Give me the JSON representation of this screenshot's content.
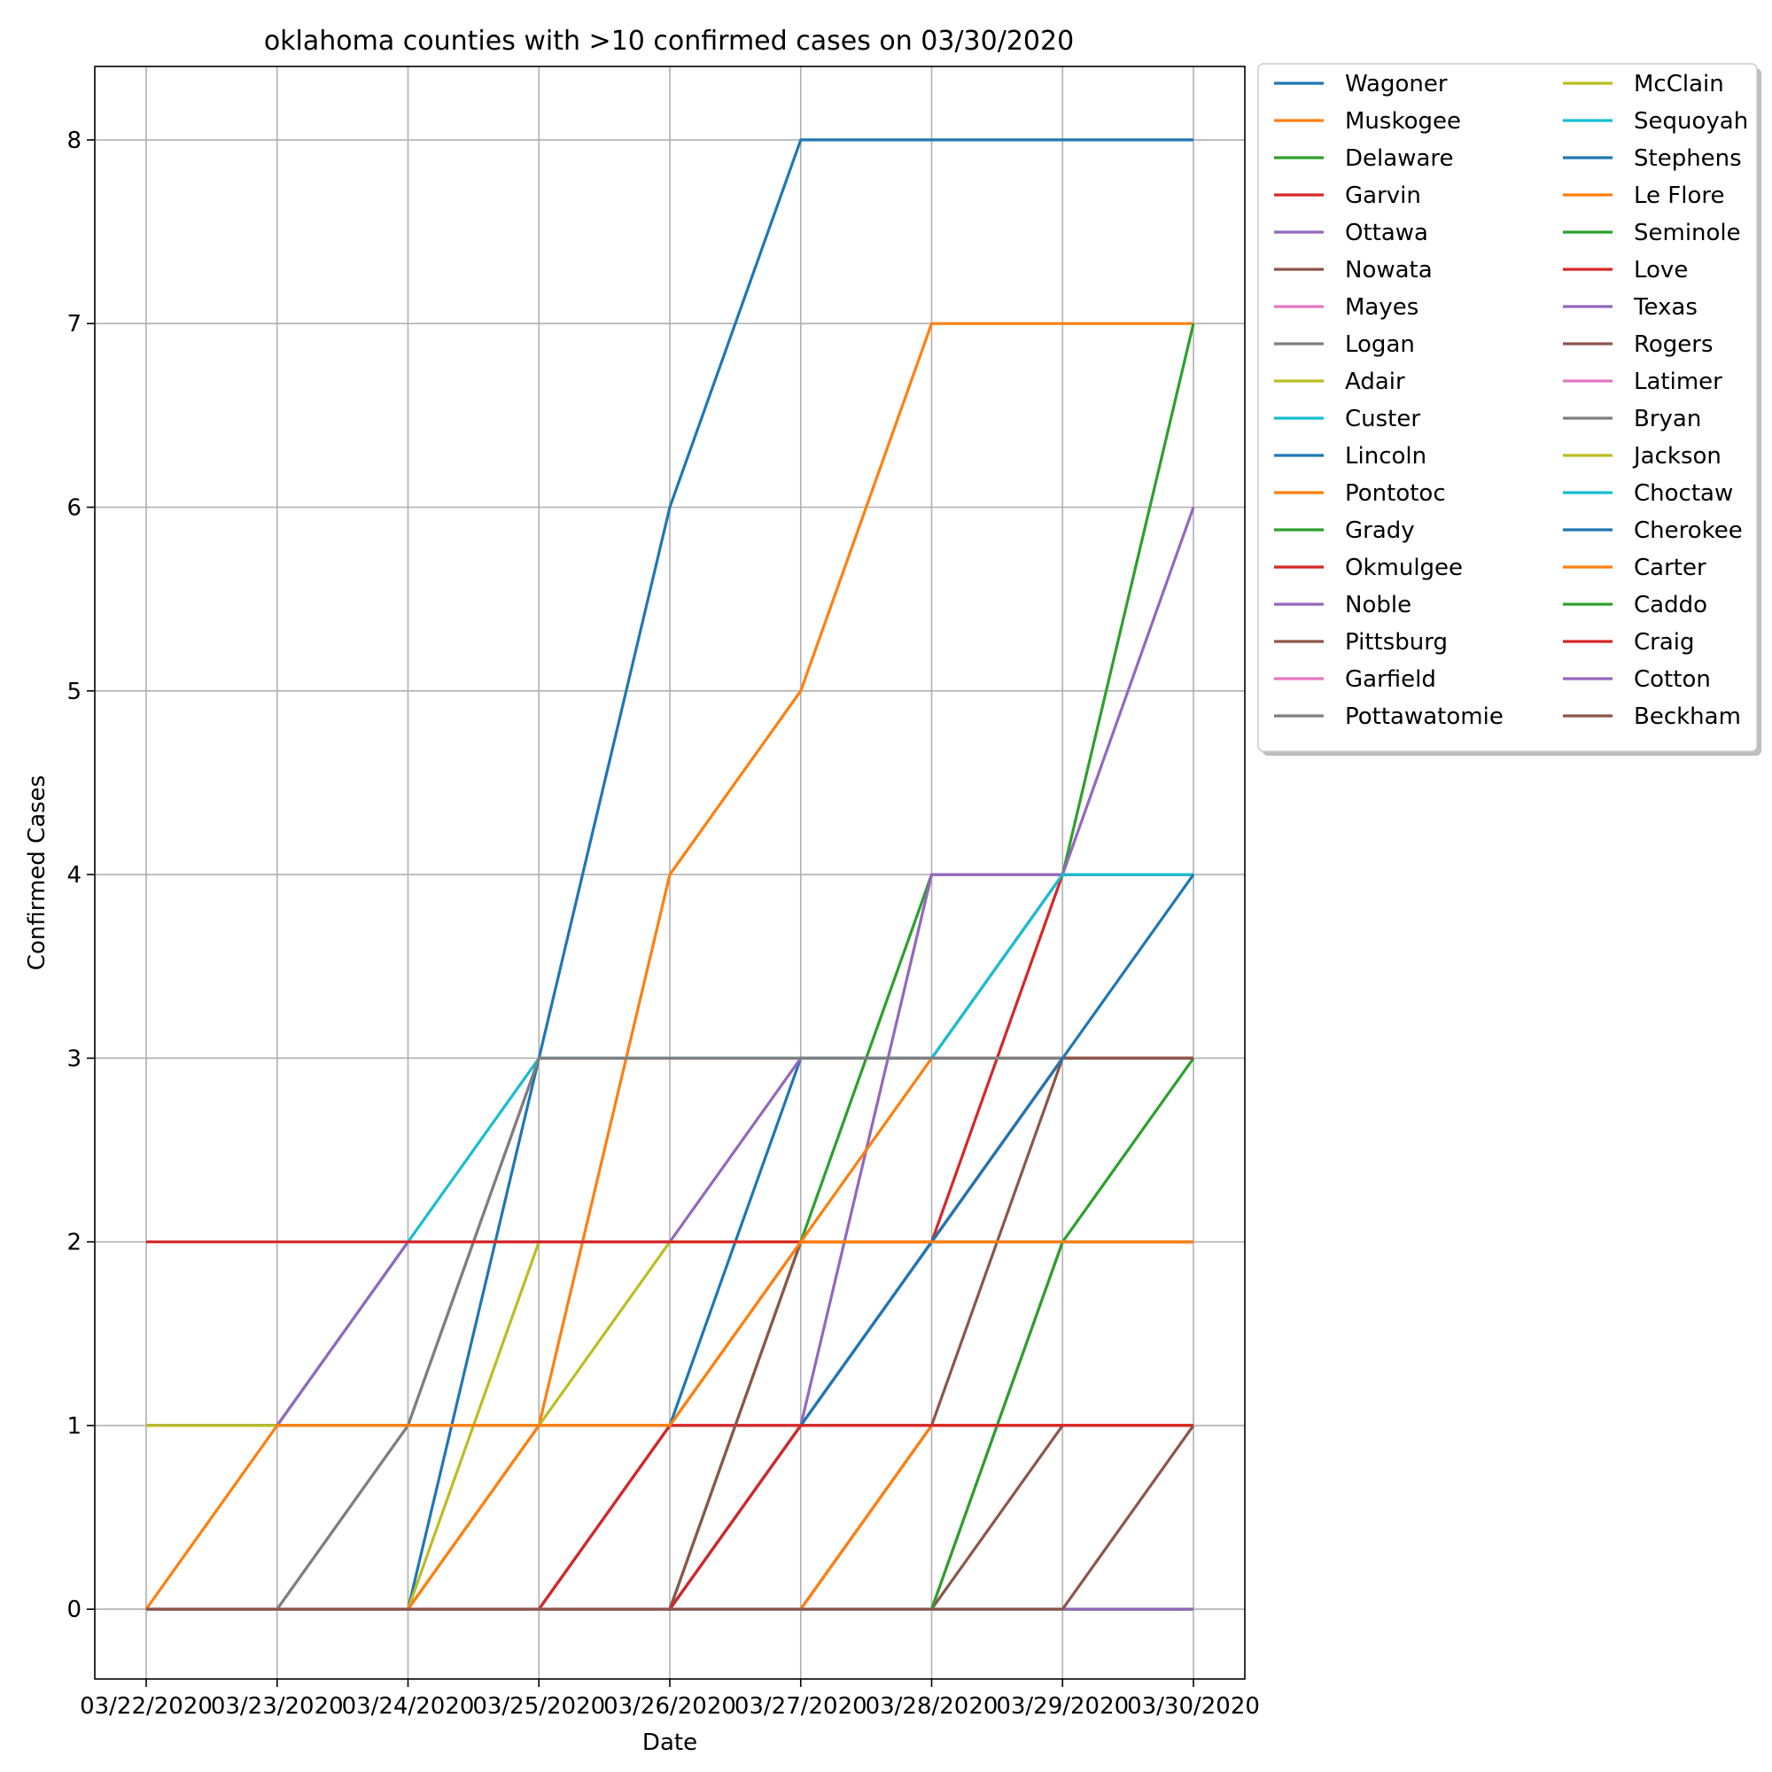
{
  "chart_data": {
    "type": "line",
    "title": "oklahoma counties with >10 confirmed cases on 03/30/2020",
    "xlabel": "Date",
    "ylabel": "Confirmed Cases",
    "x": [
      "03/22/2020",
      "03/23/2020",
      "03/24/2020",
      "03/25/2020",
      "03/26/2020",
      "03/27/2020",
      "03/28/2020",
      "03/29/2020",
      "03/30/2020"
    ],
    "yticks": [
      "0",
      "1",
      "2",
      "3",
      "4",
      "5",
      "6",
      "7",
      "8"
    ],
    "ylim": [
      -0.38,
      8.4
    ],
    "grid": true,
    "legend_position": "outside-top-right",
    "legend_columns": 2,
    "series": [
      {
        "name": "Wagoner",
        "color": "#1f77b4",
        "values": [
          0,
          0,
          0,
          3,
          6,
          8,
          8,
          8,
          8
        ]
      },
      {
        "name": "Muskogee",
        "color": "#ff7f0e",
        "values": [
          0,
          0,
          0,
          1,
          4,
          5,
          7,
          7,
          7
        ]
      },
      {
        "name": "Delaware",
        "color": "#2ca02c",
        "values": [
          0,
          0,
          0,
          0,
          0,
          2,
          4,
          4,
          7
        ]
      },
      {
        "name": "Garvin",
        "color": "#d62728",
        "values": [
          0,
          0,
          0,
          0,
          1,
          1,
          2,
          4,
          4
        ]
      },
      {
        "name": "Ottawa",
        "color": "#9467bd",
        "values": [
          0,
          0,
          0,
          0,
          0,
          1,
          4,
          4,
          6
        ]
      },
      {
        "name": "Nowata",
        "color": "#8c564b",
        "values": [
          0,
          0,
          0,
          0,
          0,
          0,
          0,
          1,
          1
        ]
      },
      {
        "name": "Mayes",
        "color": "#e377c2",
        "values": [
          0,
          0,
          1,
          1,
          1,
          1,
          1,
          1,
          1
        ]
      },
      {
        "name": "Logan",
        "color": "#7f7f7f",
        "values": [
          1,
          1,
          1,
          3,
          3,
          3,
          3,
          4,
          4
        ]
      },
      {
        "name": "Adair",
        "color": "#bcbd22",
        "values": [
          0,
          0,
          0,
          2,
          2,
          2,
          2,
          3,
          3
        ]
      },
      {
        "name": "Custer",
        "color": "#17becf",
        "values": [
          1,
          1,
          2,
          3,
          3,
          3,
          3,
          4,
          4
        ]
      },
      {
        "name": "Lincoln",
        "color": "#1f77b4",
        "values": [
          0,
          0,
          0,
          0,
          1,
          3,
          3,
          3,
          3
        ]
      },
      {
        "name": "Pontotoc",
        "color": "#ff7f0e",
        "values": [
          0,
          0,
          0,
          1,
          1,
          2,
          3,
          3,
          3
        ]
      },
      {
        "name": "Grady",
        "color": "#2ca02c",
        "values": [
          0,
          0,
          0,
          0,
          0,
          1,
          1,
          1,
          1
        ]
      },
      {
        "name": "Okmulgee",
        "color": "#d62728",
        "values": [
          0,
          0,
          0,
          0,
          1,
          1,
          1,
          1,
          1
        ]
      },
      {
        "name": "Noble",
        "color": "#9467bd",
        "values": [
          1,
          1,
          2,
          2,
          2,
          3,
          3,
          3,
          3
        ]
      },
      {
        "name": "Pittsburg",
        "color": "#8c564b",
        "values": [
          0,
          0,
          0,
          0,
          0,
          0,
          1,
          3,
          3
        ]
      },
      {
        "name": "Garfield",
        "color": "#e377c2",
        "values": [
          0,
          0,
          0,
          0,
          0,
          0,
          0,
          2,
          2
        ]
      },
      {
        "name": "Pottawatomie",
        "color": "#7f7f7f",
        "values": [
          0,
          0,
          1,
          3,
          3,
          3,
          3,
          3,
          3
        ]
      },
      {
        "name": "McClain",
        "color": "#bcbd22",
        "values": [
          1,
          1,
          1,
          1,
          2,
          2,
          2,
          2,
          2
        ]
      },
      {
        "name": "Sequoyah",
        "color": "#17becf",
        "values": [
          0,
          0,
          0,
          0,
          0,
          0,
          0,
          0,
          0
        ]
      },
      {
        "name": "Stephens",
        "color": "#1f77b4",
        "values": [
          0,
          0,
          0,
          0,
          0,
          1,
          2,
          2,
          2
        ]
      },
      {
        "name": "Le Flore",
        "color": "#ff7f0e",
        "values": [
          0,
          0,
          0,
          0,
          0,
          0,
          1,
          1,
          1
        ]
      },
      {
        "name": "Seminole",
        "color": "#2ca02c",
        "values": [
          0,
          0,
          0,
          0,
          0,
          0,
          0,
          2,
          3
        ]
      },
      {
        "name": "Love",
        "color": "#d62728",
        "values": [
          2,
          2,
          2,
          2,
          2,
          2,
          2,
          3,
          3
        ]
      },
      {
        "name": "Texas",
        "color": "#9467bd",
        "values": [
          0,
          0,
          0,
          0,
          0,
          0,
          0,
          0,
          0
        ]
      },
      {
        "name": "Rogers",
        "color": "#8c564b",
        "values": [
          0,
          0,
          0,
          0,
          0,
          2,
          2,
          3,
          3
        ]
      },
      {
        "name": "Latimer",
        "color": "#e377c2",
        "values": [
          0,
          0,
          0,
          0,
          0,
          0,
          0,
          0,
          0
        ]
      },
      {
        "name": "Bryan",
        "color": "#7f7f7f",
        "values": [
          0,
          0,
          0,
          0,
          0,
          0,
          0,
          0,
          0
        ]
      },
      {
        "name": "Jackson",
        "color": "#bcbd22",
        "values": [
          0,
          0,
          0,
          0,
          0,
          0,
          0,
          0,
          0
        ]
      },
      {
        "name": "Choctaw",
        "color": "#17becf",
        "values": [
          0,
          0,
          0,
          0,
          0,
          0,
          0,
          0,
          0
        ]
      },
      {
        "name": "Cherokee",
        "color": "#1f77b4",
        "values": [
          0,
          0,
          0,
          0,
          0,
          1,
          2,
          3,
          4
        ]
      },
      {
        "name": "Carter",
        "color": "#ff7f0e",
        "values": [
          0,
          1,
          1,
          1,
          1,
          2,
          2,
          2,
          2
        ]
      },
      {
        "name": "Caddo",
        "color": "#2ca02c",
        "values": [
          0,
          0,
          0,
          0,
          0,
          0,
          0,
          0,
          0
        ]
      },
      {
        "name": "Craig",
        "color": "#d62728",
        "values": [
          0,
          0,
          0,
          0,
          0,
          1,
          1,
          1,
          1
        ]
      },
      {
        "name": "Cotton",
        "color": "#9467bd",
        "values": [
          0,
          0,
          0,
          0,
          0,
          0,
          0,
          0,
          0
        ]
      },
      {
        "name": "Beckham",
        "color": "#8c564b",
        "values": [
          0,
          0,
          0,
          0,
          0,
          0,
          0,
          0,
          1
        ]
      }
    ]
  }
}
